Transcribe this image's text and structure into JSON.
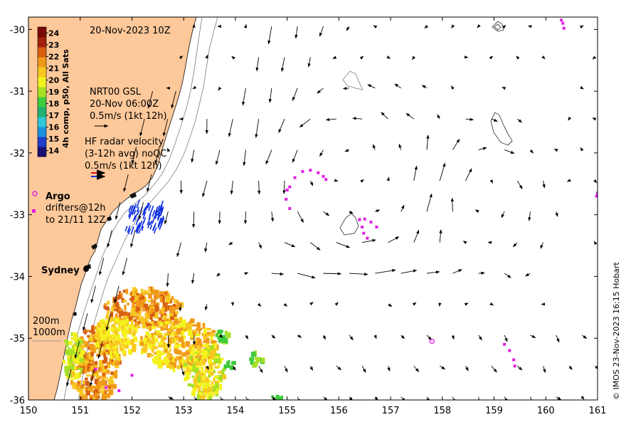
{
  "chart_data": {
    "type": "map",
    "title": "20-Nov-2023 10Z",
    "x_ticks": [
      "150",
      "151",
      "152",
      "153",
      "154",
      "155",
      "156",
      "157",
      "158",
      "159",
      "160",
      "161"
    ],
    "y_ticks": [
      "-30",
      "-31",
      "-32",
      "-33",
      "-34",
      "-35",
      "-36"
    ],
    "xlim": [
      150,
      161
    ],
    "ylim": [
      -36,
      -29.8
    ],
    "colorbar": {
      "title": "4h comp, p50, All Sats",
      "ticks": [
        "24",
        "23",
        "22",
        "21",
        "20",
        "19",
        "18",
        "17",
        "16",
        "15",
        "14"
      ],
      "range": [
        13.5,
        24.5
      ],
      "colors": [
        "#1a0f72",
        "#1f3fc8",
        "#1e90e0",
        "#2ec8d8",
        "#21b070",
        "#3ecb3e",
        "#a6e024",
        "#f4f21e",
        "#f8c820",
        "#f19a1a",
        "#d85f10",
        "#a2210d",
        "#7a0a08"
      ]
    },
    "annotations": {
      "model_label": "NRT00 GSL",
      "model_time": "20-Nov 06:00Z",
      "model_scale": "0.5m/s (1kt 12h)",
      "radar_label": "HF radar velocity",
      "radar_avg": "(3-12h avg) noQC",
      "radar_scale": "0.5m/s (1kt 12h)",
      "argo_label": "Argo",
      "drifters_line1": "drifters@12h",
      "drifters_line2": "to 21/11 12Z",
      "city": "Sydney",
      "depth_200": "200m",
      "depth_1000": "1000m"
    },
    "credit": "© IMOS 23-Nov-2023 16:15 Hobart",
    "sydney": {
      "lon": 151.2,
      "lat": -33.87
    },
    "argo_floats": [
      {
        "lon": 157.8,
        "lat": -35.05
      }
    ],
    "drifter_tracks": [
      [
        [
          155.0,
          -32.6
        ],
        [
          155.05,
          -32.55
        ],
        [
          155.15,
          -32.4
        ],
        [
          155.3,
          -32.3
        ],
        [
          155.45,
          -32.28
        ],
        [
          155.6,
          -32.32
        ],
        [
          155.7,
          -32.38
        ],
        [
          155.75,
          -32.43
        ]
      ],
      [
        [
          155.0,
          -32.6
        ],
        [
          154.98,
          -32.75
        ],
        [
          155.05,
          -32.9
        ]
      ],
      [
        [
          156.4,
          -33.08
        ],
        [
          156.5,
          -33.07
        ],
        [
          156.62,
          -33.12
        ],
        [
          156.73,
          -33.2
        ]
      ],
      [
        [
          156.4,
          -33.08
        ],
        [
          156.45,
          -33.2
        ],
        [
          156.48,
          -33.3
        ],
        [
          156.55,
          -33.38
        ]
      ],
      [
        [
          159.2,
          -35.1
        ],
        [
          159.3,
          -35.2
        ],
        [
          159.38,
          -35.35
        ],
        [
          159.4,
          -35.45
        ]
      ],
      [
        [
          160.3,
          -29.85
        ],
        [
          160.33,
          -29.9
        ],
        [
          160.35,
          -29.98
        ]
      ],
      [
        [
          161.0,
          -32.65
        ],
        [
          160.98,
          -32.7
        ]
      ]
    ]
  }
}
